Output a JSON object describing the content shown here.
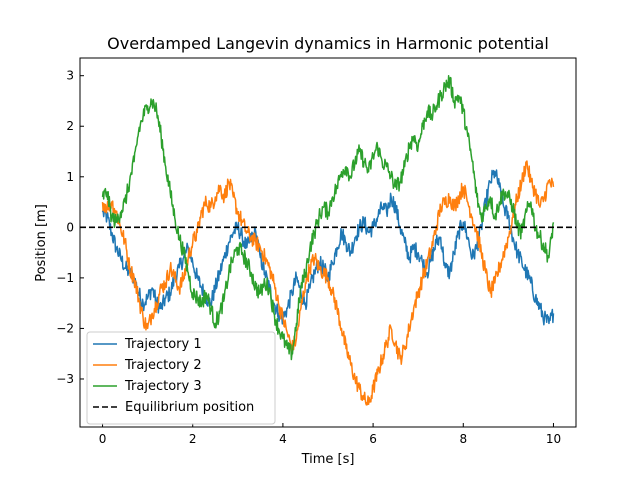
{
  "chart_data": {
    "type": "line",
    "title": "Overdamped Langevin dynamics in Harmonic potential",
    "xlabel": "Time [s]",
    "ylabel": "Position [m]",
    "xlim": [
      -0.5,
      10.5
    ],
    "ylim": [
      -3.95,
      3.35
    ],
    "xticks": [
      0,
      2,
      4,
      6,
      8,
      10
    ],
    "xtick_labels": [
      "0",
      "2",
      "4",
      "6",
      "8",
      "10"
    ],
    "yticks": [
      -3,
      -2,
      -1,
      0,
      1,
      2,
      3
    ],
    "ytick_labels": [
      "−3",
      "−2",
      "−1",
      "0",
      "1",
      "2",
      "3"
    ],
    "grid": false,
    "legend_position": "lower-left",
    "series": [
      {
        "name": "Trajectory 1",
        "color": "#1f77b4",
        "style": "solid",
        "x": [
          0,
          0.1,
          0.2,
          0.3,
          0.4,
          0.5,
          0.6,
          0.7,
          0.8,
          0.9,
          1.0,
          1.1,
          1.2,
          1.3,
          1.4,
          1.5,
          1.6,
          1.7,
          1.8,
          1.9,
          2.0,
          2.1,
          2.2,
          2.3,
          2.4,
          2.5,
          2.6,
          2.7,
          2.8,
          2.9,
          3.0,
          3.1,
          3.2,
          3.3,
          3.4,
          3.5,
          3.6,
          3.7,
          3.8,
          3.9,
          4.0,
          4.1,
          4.2,
          4.3,
          4.4,
          4.5,
          4.6,
          4.7,
          4.8,
          4.9,
          5.0,
          5.1,
          5.2,
          5.3,
          5.4,
          5.5,
          5.6,
          5.7,
          5.8,
          5.9,
          6.0,
          6.1,
          6.2,
          6.3,
          6.4,
          6.5,
          6.6,
          6.7,
          6.8,
          6.9,
          7.0,
          7.1,
          7.2,
          7.3,
          7.4,
          7.5,
          7.6,
          7.7,
          7.8,
          7.9,
          8.0,
          8.1,
          8.2,
          8.3,
          8.4,
          8.5,
          8.6,
          8.7,
          8.8,
          8.9,
          9.0,
          9.1,
          9.2,
          9.3,
          9.4,
          9.5,
          9.6,
          9.7,
          9.8,
          9.9,
          10.0
        ],
        "values": [
          0.3,
          0.2,
          -0.1,
          -0.4,
          -0.6,
          -0.8,
          -0.9,
          -1.0,
          -1.3,
          -1.5,
          -1.4,
          -1.2,
          -1.5,
          -1.6,
          -1.4,
          -1.3,
          -1.0,
          -0.8,
          -0.6,
          -0.4,
          -0.7,
          -1.0,
          -1.2,
          -1.4,
          -1.5,
          -1.2,
          -0.9,
          -0.6,
          -0.3,
          -0.1,
          0.0,
          -0.2,
          -0.4,
          -0.2,
          -0.1,
          -0.6,
          -0.9,
          -1.2,
          -1.5,
          -1.7,
          -1.8,
          -1.6,
          -1.3,
          -1.0,
          -1.3,
          -1.5,
          -1.2,
          -0.9,
          -0.7,
          -0.8,
          -1.0,
          -0.7,
          -0.4,
          -0.1,
          -0.3,
          -0.5,
          -0.2,
          0.0,
          0.1,
          -0.1,
          0.0,
          0.2,
          0.4,
          0.3,
          0.6,
          0.4,
          0.0,
          -0.3,
          -0.6,
          -0.4,
          -0.5,
          -0.7,
          -0.9,
          -0.6,
          -0.3,
          -0.2,
          -0.8,
          -0.9,
          -0.5,
          -0.1,
          0.1,
          -0.2,
          -0.6,
          -0.4,
          0.0,
          0.5,
          0.9,
          1.1,
          0.8,
          0.4,
          0.2,
          -0.2,
          -0.5,
          -0.7,
          -0.9,
          -1.1,
          -1.4,
          -1.6,
          -1.8,
          -1.9,
          -1.7
        ]
      },
      {
        "name": "Trajectory 2",
        "color": "#ff7f0e",
        "style": "solid",
        "x": [
          0,
          0.1,
          0.2,
          0.3,
          0.4,
          0.5,
          0.6,
          0.7,
          0.8,
          0.9,
          1.0,
          1.1,
          1.2,
          1.3,
          1.4,
          1.5,
          1.6,
          1.7,
          1.8,
          1.9,
          2.0,
          2.1,
          2.2,
          2.3,
          2.4,
          2.5,
          2.6,
          2.7,
          2.8,
          2.9,
          3.0,
          3.1,
          3.2,
          3.3,
          3.4,
          3.5,
          3.6,
          3.7,
          3.8,
          3.9,
          4.0,
          4.1,
          4.2,
          4.3,
          4.4,
          4.5,
          4.6,
          4.7,
          4.8,
          4.9,
          5.0,
          5.1,
          5.2,
          5.3,
          5.4,
          5.5,
          5.6,
          5.7,
          5.8,
          5.9,
          6.0,
          6.1,
          6.2,
          6.3,
          6.4,
          6.5,
          6.6,
          6.7,
          6.8,
          6.9,
          7.0,
          7.1,
          7.2,
          7.3,
          7.4,
          7.5,
          7.6,
          7.7,
          7.8,
          7.9,
          8.0,
          8.1,
          8.2,
          8.3,
          8.4,
          8.5,
          8.6,
          8.7,
          8.8,
          8.9,
          9.0,
          9.1,
          9.2,
          9.3,
          9.4,
          9.5,
          9.6,
          9.7,
          9.8,
          9.9,
          10.0
        ],
        "values": [
          0.5,
          0.4,
          0.5,
          0.3,
          0.0,
          -0.3,
          -0.8,
          -1.0,
          -1.4,
          -1.8,
          -2.0,
          -1.7,
          -1.5,
          -1.2,
          -1.1,
          -0.8,
          -1.0,
          -1.2,
          -1.0,
          -0.6,
          -0.3,
          -0.1,
          0.3,
          0.5,
          0.4,
          0.6,
          0.8,
          0.6,
          0.9,
          0.6,
          0.3,
          0.1,
          -0.1,
          -0.2,
          -0.3,
          -0.4,
          -0.6,
          -0.8,
          -1.1,
          -1.5,
          -1.8,
          -2.1,
          -2.4,
          -2.2,
          -1.6,
          -1.1,
          -0.8,
          -0.6,
          -0.8,
          -0.9,
          -1.0,
          -1.3,
          -1.6,
          -2.0,
          -2.4,
          -2.7,
          -3.0,
          -3.2,
          -3.4,
          -3.5,
          -3.2,
          -2.9,
          -2.6,
          -2.3,
          -2.0,
          -2.3,
          -2.6,
          -2.4,
          -2.0,
          -1.6,
          -1.3,
          -1.0,
          -0.7,
          -0.4,
          0.0,
          0.4,
          0.5,
          0.6,
          0.4,
          0.6,
          0.8,
          0.5,
          0.2,
          -0.1,
          -0.5,
          -0.9,
          -1.3,
          -1.1,
          -0.8,
          -0.5,
          -0.2,
          0.2,
          0.6,
          0.9,
          1.3,
          0.9,
          0.7,
          0.4,
          0.6,
          0.9,
          0.8
        ]
      },
      {
        "name": "Trajectory 3",
        "color": "#2ca02c",
        "style": "solid",
        "x": [
          0,
          0.1,
          0.2,
          0.3,
          0.4,
          0.5,
          0.6,
          0.7,
          0.8,
          0.9,
          1.0,
          1.1,
          1.2,
          1.3,
          1.4,
          1.5,
          1.6,
          1.7,
          1.8,
          1.9,
          2.0,
          2.1,
          2.2,
          2.3,
          2.4,
          2.5,
          2.6,
          2.7,
          2.8,
          2.9,
          3.0,
          3.1,
          3.2,
          3.3,
          3.4,
          3.5,
          3.6,
          3.7,
          3.8,
          3.9,
          4.0,
          4.1,
          4.2,
          4.3,
          4.4,
          4.5,
          4.6,
          4.7,
          4.8,
          4.9,
          5.0,
          5.1,
          5.2,
          5.3,
          5.4,
          5.5,
          5.6,
          5.7,
          5.8,
          5.9,
          6.0,
          6.1,
          6.2,
          6.3,
          6.4,
          6.5,
          6.6,
          6.7,
          6.8,
          6.9,
          7.0,
          7.1,
          7.2,
          7.3,
          7.4,
          7.5,
          7.6,
          7.7,
          7.8,
          7.9,
          8.0,
          8.1,
          8.2,
          8.3,
          8.4,
          8.5,
          8.6,
          8.7,
          8.8,
          8.9,
          9.0,
          9.1,
          9.2,
          9.3,
          9.4,
          9.5,
          9.6,
          9.7,
          9.8,
          9.9,
          10.0
        ],
        "values": [
          0.6,
          0.7,
          0.2,
          0.1,
          0.3,
          0.5,
          0.9,
          1.3,
          1.9,
          2.2,
          2.4,
          2.5,
          2.3,
          1.8,
          1.2,
          0.7,
          0.2,
          -0.2,
          -0.5,
          -0.9,
          -1.3,
          -1.4,
          -1.5,
          -1.3,
          -1.6,
          -1.9,
          -1.7,
          -1.4,
          -0.9,
          -0.6,
          -0.4,
          -0.5,
          -0.7,
          -0.9,
          -1.2,
          -1.3,
          -1.1,
          -1.2,
          -1.7,
          -2.0,
          -2.2,
          -2.4,
          -2.5,
          -1.9,
          -1.2,
          -0.9,
          -0.4,
          -0.1,
          0.2,
          0.4,
          0.3,
          0.6,
          0.8,
          1.1,
          1.2,
          1.0,
          1.3,
          1.5,
          1.3,
          1.1,
          1.4,
          1.6,
          1.3,
          1.2,
          1.0,
          0.8,
          0.9,
          1.2,
          1.6,
          1.8,
          1.6,
          2.0,
          2.3,
          2.2,
          2.4,
          2.6,
          2.8,
          2.9,
          2.5,
          2.6,
          2.3,
          1.8,
          1.3,
          0.6,
          0.2,
          0.4,
          0.6,
          0.2,
          0.5,
          0.7,
          0.6,
          0.4,
          0.0,
          -0.1,
          0.3,
          0.5,
          0.0,
          -0.2,
          -0.4,
          -0.6,
          0.1
        ]
      },
      {
        "name": "Equilibrium position",
        "color": "#000000",
        "style": "dashed",
        "x": [
          -0.5,
          10.5
        ],
        "values": [
          0,
          0
        ]
      }
    ]
  }
}
